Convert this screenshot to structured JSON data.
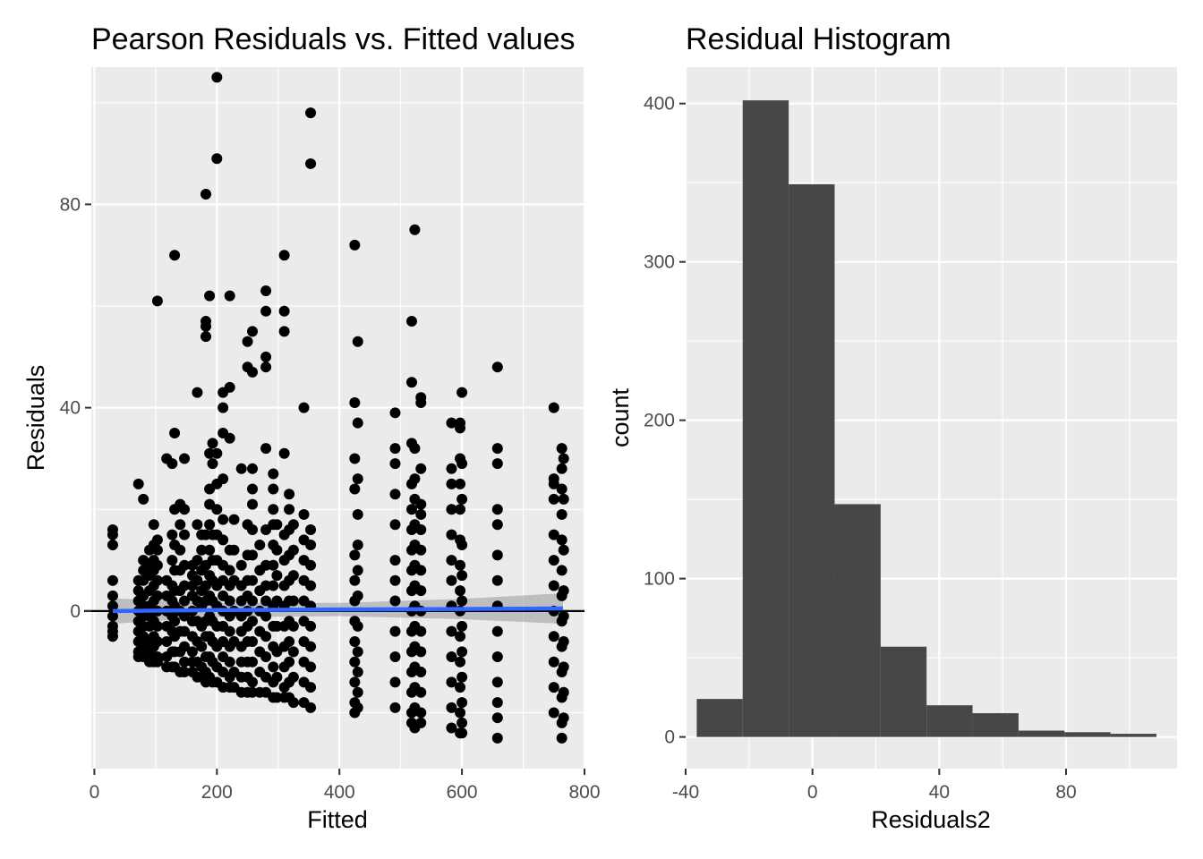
{
  "chart_data": [
    {
      "type": "scatter",
      "title": "Pearson Residuals vs. Fitted values",
      "xlabel": "Fitted",
      "ylabel": "Residuals",
      "xlim": [
        -5,
        800
      ],
      "ylim": [
        -31,
        107
      ],
      "xticks": [
        0,
        200,
        400,
        600,
        800
      ],
      "xtick_labels": [
        "0",
        "200",
        "400",
        "600",
        "800"
      ],
      "yticks": [
        0,
        40,
        80
      ],
      "ytick_labels": [
        "0",
        "40",
        "80"
      ],
      "grid": true,
      "reference_line": {
        "y": 0,
        "color": "#000000"
      },
      "smooth": {
        "color": "#3366ff",
        "band_color": "#999999",
        "x": [
          30,
          200,
          400,
          600,
          765
        ],
        "y": [
          0.0,
          0.2,
          0.3,
          0.4,
          0.5
        ],
        "band_lower": [
          -2.5,
          -1.2,
          -1.0,
          -1.6,
          -2.5
        ],
        "band_upper": [
          2.5,
          1.6,
          1.6,
          2.4,
          3.5
        ]
      },
      "point_color": "#000000",
      "columns": [
        {
          "x": 30,
          "y": [
            16,
            15,
            13,
            6,
            3,
            1,
            -1,
            -3,
            -4,
            -5
          ]
        },
        {
          "x": 72,
          "y": [
            25,
            6,
            4,
            2,
            0,
            -2,
            -4,
            -6,
            -8,
            -9
          ]
        },
        {
          "x": 80,
          "y": [
            22,
            10,
            8,
            6,
            3,
            1,
            -1,
            -3,
            -5,
            -7,
            -9
          ]
        },
        {
          "x": 90,
          "y": [
            12,
            9,
            7,
            4,
            1,
            -1,
            -3,
            -6,
            -8,
            -10
          ]
        },
        {
          "x": 97,
          "y": [
            17,
            13,
            10,
            8,
            5,
            2,
            0,
            -2,
            -5,
            -7,
            -9,
            -10
          ]
        },
        {
          "x": 103,
          "y": [
            61,
            14,
            12,
            9,
            6,
            3,
            0,
            -3,
            -6,
            -9,
            -10
          ]
        },
        {
          "x": 118,
          "y": [
            30,
            6,
            3,
            0,
            -3,
            -6,
            -9,
            -11
          ]
        },
        {
          "x": 127,
          "y": [
            29,
            15,
            10,
            5,
            2,
            -1,
            -4,
            -8,
            -11
          ]
        },
        {
          "x": 131,
          "y": [
            70,
            35,
            20,
            13,
            8,
            4,
            1,
            -2,
            -5,
            -8,
            -11
          ]
        },
        {
          "x": 140,
          "y": [
            21,
            17,
            12,
            8,
            4,
            0,
            -4,
            -8,
            -12
          ]
        },
        {
          "x": 147,
          "y": [
            30,
            20,
            15,
            9,
            5,
            2,
            -1,
            -4,
            -7,
            -10,
            -12
          ]
        },
        {
          "x": 160,
          "y": [
            9,
            7,
            5,
            3,
            0,
            -2,
            -5,
            -8,
            -10,
            -12
          ]
        },
        {
          "x": 168,
          "y": [
            43,
            17,
            10,
            6,
            2,
            -2,
            -6,
            -10,
            -13
          ]
        },
        {
          "x": 175,
          "y": [
            15,
            12,
            8,
            4,
            1,
            -3,
            -7,
            -11,
            -13
          ]
        },
        {
          "x": 182,
          "y": [
            82,
            57,
            56,
            54,
            15,
            9,
            5,
            2,
            -2,
            -5,
            -9,
            -12,
            -14
          ]
        },
        {
          "x": 188,
          "y": [
            62,
            31,
            24,
            21,
            17,
            12,
            7,
            3,
            -1,
            -5,
            -9,
            -13
          ]
        },
        {
          "x": 193,
          "y": [
            33,
            29,
            15,
            10,
            6,
            2,
            -2,
            -6,
            -10,
            -14
          ]
        },
        {
          "x": 200,
          "y": [
            105,
            89,
            31,
            25,
            20,
            15,
            10,
            5,
            1,
            -3,
            -7,
            -11,
            -14
          ]
        },
        {
          "x": 210,
          "y": [
            43,
            40,
            35,
            26,
            18,
            14,
            9,
            6,
            3,
            0,
            -3,
            -6,
            -9,
            -12,
            -15
          ]
        },
        {
          "x": 221,
          "y": [
            62,
            44,
            34,
            12,
            8,
            5,
            2,
            -1,
            -4,
            -7,
            -10,
            -13,
            -15
          ]
        },
        {
          "x": 228,
          "y": [
            18,
            12,
            6,
            0,
            -6,
            -12,
            -15
          ]
        },
        {
          "x": 240,
          "y": [
            28,
            9,
            5,
            2,
            -1,
            -4,
            -7,
            -10,
            -13,
            -16
          ]
        },
        {
          "x": 250,
          "y": [
            53,
            48,
            17,
            11,
            6,
            3,
            0,
            -3,
            -6,
            -10,
            -13,
            -16
          ]
        },
        {
          "x": 258,
          "y": [
            55,
            47,
            28,
            24,
            21,
            16,
            11,
            6,
            2,
            -2,
            -6,
            -10,
            -14,
            -16
          ]
        },
        {
          "x": 270,
          "y": [
            13,
            8,
            4,
            0,
            -4,
            -8,
            -12,
            -16
          ]
        },
        {
          "x": 280,
          "y": [
            63,
            59,
            50,
            48,
            32,
            16,
            9,
            5,
            2,
            -1,
            -5,
            -9,
            -13,
            -16
          ]
        },
        {
          "x": 292,
          "y": [
            27,
            24,
            20,
            17,
            13,
            9,
            5,
            1,
            -3,
            -7,
            -11,
            -14,
            -17
          ]
        },
        {
          "x": 298,
          "y": [
            17,
            12,
            7,
            2,
            -3,
            -8,
            -13,
            -17
          ]
        },
        {
          "x": 310,
          "y": [
            70,
            59,
            55,
            31,
            15,
            10,
            5,
            1,
            -3,
            -7,
            -11,
            -15,
            -17
          ]
        },
        {
          "x": 318,
          "y": [
            23,
            20,
            16,
            11,
            6,
            2,
            -2,
            -6,
            -10,
            -14,
            -17
          ]
        },
        {
          "x": 325,
          "y": [
            17,
            12,
            7,
            2,
            -3,
            -8,
            -13,
            -18
          ]
        },
        {
          "x": 342,
          "y": [
            40,
            19,
            14,
            10,
            6,
            2,
            -2,
            -6,
            -10,
            -14,
            -18
          ]
        },
        {
          "x": 353,
          "y": [
            98,
            88,
            16,
            13,
            9,
            5,
            1,
            -3,
            -7,
            -11,
            -15,
            -19
          ]
        },
        {
          "x": 425,
          "y": [
            72,
            41,
            30,
            24,
            11,
            6,
            2,
            -2,
            -6,
            -10,
            -14,
            -18,
            -20
          ]
        },
        {
          "x": 430,
          "y": [
            53,
            37,
            26,
            19,
            13,
            8,
            3,
            -3,
            -8,
            -12,
            -16,
            -19
          ]
        },
        {
          "x": 491,
          "y": [
            39,
            32,
            29,
            23,
            17,
            10,
            6,
            2,
            -4,
            -9,
            -14,
            -19
          ]
        },
        {
          "x": 518,
          "y": [
            57,
            45,
            33,
            25,
            20,
            16,
            12,
            8,
            4,
            0,
            -4,
            -8,
            -12,
            -16,
            -20,
            -22
          ]
        },
        {
          "x": 523,
          "y": [
            75,
            32,
            26,
            22,
            17,
            13,
            9,
            5,
            1,
            -3,
            -7,
            -11,
            -15,
            -19,
            -23
          ]
        },
        {
          "x": 533,
          "y": [
            41,
            42,
            28,
            21,
            19,
            16,
            12,
            8,
            4,
            0,
            -4,
            -8,
            -12,
            -16,
            -20,
            -22
          ]
        },
        {
          "x": 583,
          "y": [
            37,
            28,
            25,
            20,
            15,
            10,
            6,
            1,
            -4,
            -9,
            -14,
            -19,
            -23
          ]
        },
        {
          "x": 597,
          "y": [
            37,
            36,
            30,
            25,
            20,
            14,
            9,
            4,
            0,
            -5,
            -10,
            -15,
            -20,
            -24
          ]
        },
        {
          "x": 600,
          "y": [
            43,
            29,
            22,
            13,
            7,
            2,
            -3,
            -8,
            -13,
            -18,
            -22,
            -24
          ]
        },
        {
          "x": 658,
          "y": [
            48,
            32,
            29,
            20,
            17,
            11,
            6,
            1,
            -4,
            -9,
            -14,
            -18,
            -21,
            -25
          ]
        },
        {
          "x": 750,
          "y": [
            40,
            26,
            25,
            22,
            15,
            10,
            5,
            0,
            -5,
            -10,
            -15,
            -20
          ]
        },
        {
          "x": 763,
          "y": [
            32,
            28,
            24,
            19,
            14,
            8,
            3,
            -2,
            -7,
            -12,
            -17,
            -22,
            -25
          ]
        },
        {
          "x": 766,
          "y": [
            30,
            22,
            12,
            4,
            -1,
            -6,
            -11,
            -16,
            -21
          ]
        }
      ]
    },
    {
      "type": "bar",
      "title": "Residual Histogram",
      "xlabel": "Residuals2",
      "ylabel": "count",
      "xlim": [
        -40,
        115
      ],
      "ylim": [
        -20,
        423
      ],
      "xticks": [
        -40,
        0,
        40,
        80
      ],
      "xtick_labels": [
        "-40",
        "0",
        "40",
        "80"
      ],
      "yticks": [
        0,
        100,
        200,
        300,
        400
      ],
      "ytick_labels": [
        "0",
        "100",
        "200",
        "300",
        "400"
      ],
      "grid": true,
      "bar_color": "#474747",
      "bin_edges": [
        -36.5,
        -22,
        -7.5,
        7,
        21.5,
        36,
        50.5,
        65,
        79.5,
        94,
        108.5
      ],
      "counts": [
        24,
        402,
        349,
        147,
        57,
        20,
        15,
        4,
        3,
        2
      ]
    }
  ]
}
